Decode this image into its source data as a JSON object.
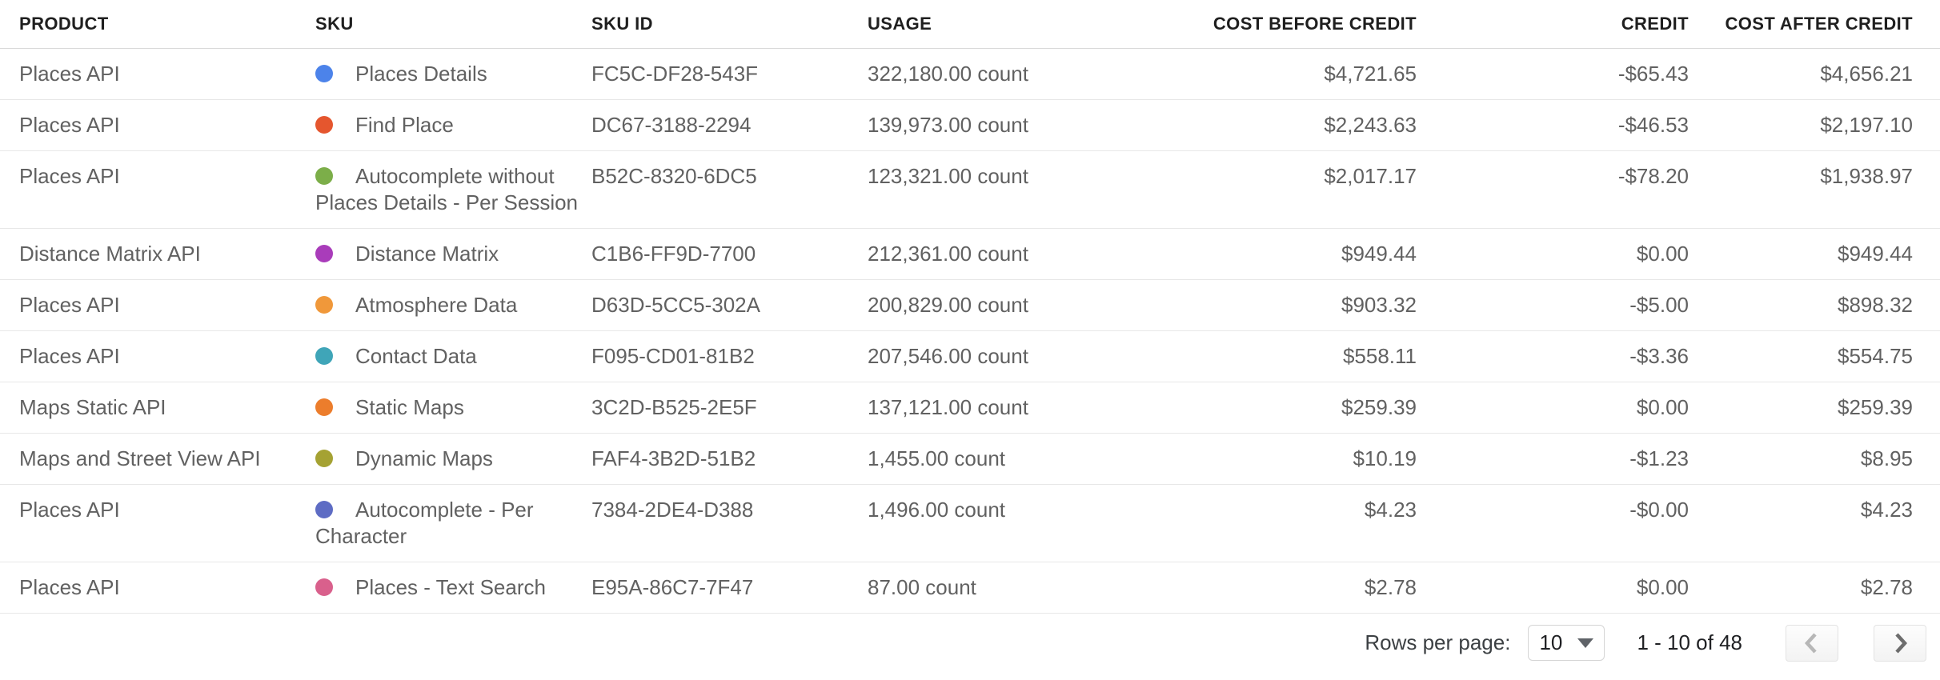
{
  "table": {
    "columns": [
      {
        "key": "product",
        "label": "PRODUCT",
        "align": "left"
      },
      {
        "key": "sku",
        "label": "SKU",
        "align": "left"
      },
      {
        "key": "sku_id",
        "label": "SKU ID",
        "align": "left"
      },
      {
        "key": "usage",
        "label": "USAGE",
        "align": "left"
      },
      {
        "key": "cost_before",
        "label": "COST BEFORE CREDIT",
        "align": "right"
      },
      {
        "key": "credit",
        "label": "CREDIT",
        "align": "right"
      },
      {
        "key": "cost_after",
        "label": "COST AFTER CREDIT",
        "align": "right"
      }
    ],
    "rows": [
      {
        "product": "Places API",
        "sku_color": "#4c83ea",
        "sku": "Places Details",
        "sku_id": "FC5C-DF28-543F",
        "usage": "322,180.00 count",
        "cost_before": "$4,721.65",
        "credit": "-$65.43",
        "cost_after": "$4,656.21"
      },
      {
        "product": "Places API",
        "sku_color": "#e5562e",
        "sku": "Find Place",
        "sku_id": "DC67-3188-2294",
        "usage": "139,973.00 count",
        "cost_before": "$2,243.63",
        "credit": "-$46.53",
        "cost_after": "$2,197.10"
      },
      {
        "product": "Places API",
        "sku_color": "#7cae49",
        "sku": "Autocomplete without Places Details - Per Session",
        "sku_id": "B52C-8320-6DC5",
        "usage": "123,321.00 count",
        "cost_before": "$2,017.17",
        "credit": "-$78.20",
        "cost_after": "$1,938.97"
      },
      {
        "product": "Distance Matrix API",
        "sku_color": "#a93cba",
        "sku": "Distance Matrix",
        "sku_id": "C1B6-FF9D-7700",
        "usage": "212,361.00 count",
        "cost_before": "$949.44",
        "credit": "$0.00",
        "cost_after": "$949.44"
      },
      {
        "product": "Places API",
        "sku_color": "#f0983a",
        "sku": "Atmosphere Data",
        "sku_id": "D63D-5CC5-302A",
        "usage": "200,829.00 count",
        "cost_before": "$903.32",
        "credit": "-$5.00",
        "cost_after": "$898.32"
      },
      {
        "product": "Places API",
        "sku_color": "#3fa5b8",
        "sku": "Contact Data",
        "sku_id": "F095-CD01-81B2",
        "usage": "207,546.00 count",
        "cost_before": "$558.11",
        "credit": "-$3.36",
        "cost_after": "$554.75"
      },
      {
        "product": "Maps Static API",
        "sku_color": "#ec7d2c",
        "sku": "Static Maps",
        "sku_id": "3C2D-B525-2E5F",
        "usage": "137,121.00 count",
        "cost_before": "$259.39",
        "credit": "$0.00",
        "cost_after": "$259.39"
      },
      {
        "product": "Maps and Street View API",
        "sku_color": "#a5a233",
        "sku": "Dynamic Maps",
        "sku_id": "FAF4-3B2D-51B2",
        "usage": "1,455.00 count",
        "cost_before": "$10.19",
        "credit": "-$1.23",
        "cost_after": "$8.95"
      },
      {
        "product": "Places API",
        "sku_color": "#5e6cc4",
        "sku": "Autocomplete - Per Character",
        "sku_id": "7384-2DE4-D388",
        "usage": "1,496.00 count",
        "cost_before": "$4.23",
        "credit": "-$0.00",
        "cost_after": "$4.23"
      },
      {
        "product": "Places API",
        "sku_color": "#d9608c",
        "sku": "Places - Text Search",
        "sku_id": "E95A-86C7-7F47",
        "usage": "87.00 count",
        "cost_before": "$2.78",
        "credit": "$0.00",
        "cost_after": "$2.78"
      }
    ]
  },
  "footer": {
    "rows_per_page_label": "Rows per page:",
    "page_size": "10",
    "range_text": "1 - 10 of 48",
    "icons": [
      "chevron-down-icon",
      "chevron-left-icon",
      "chevron-right-icon"
    ]
  }
}
